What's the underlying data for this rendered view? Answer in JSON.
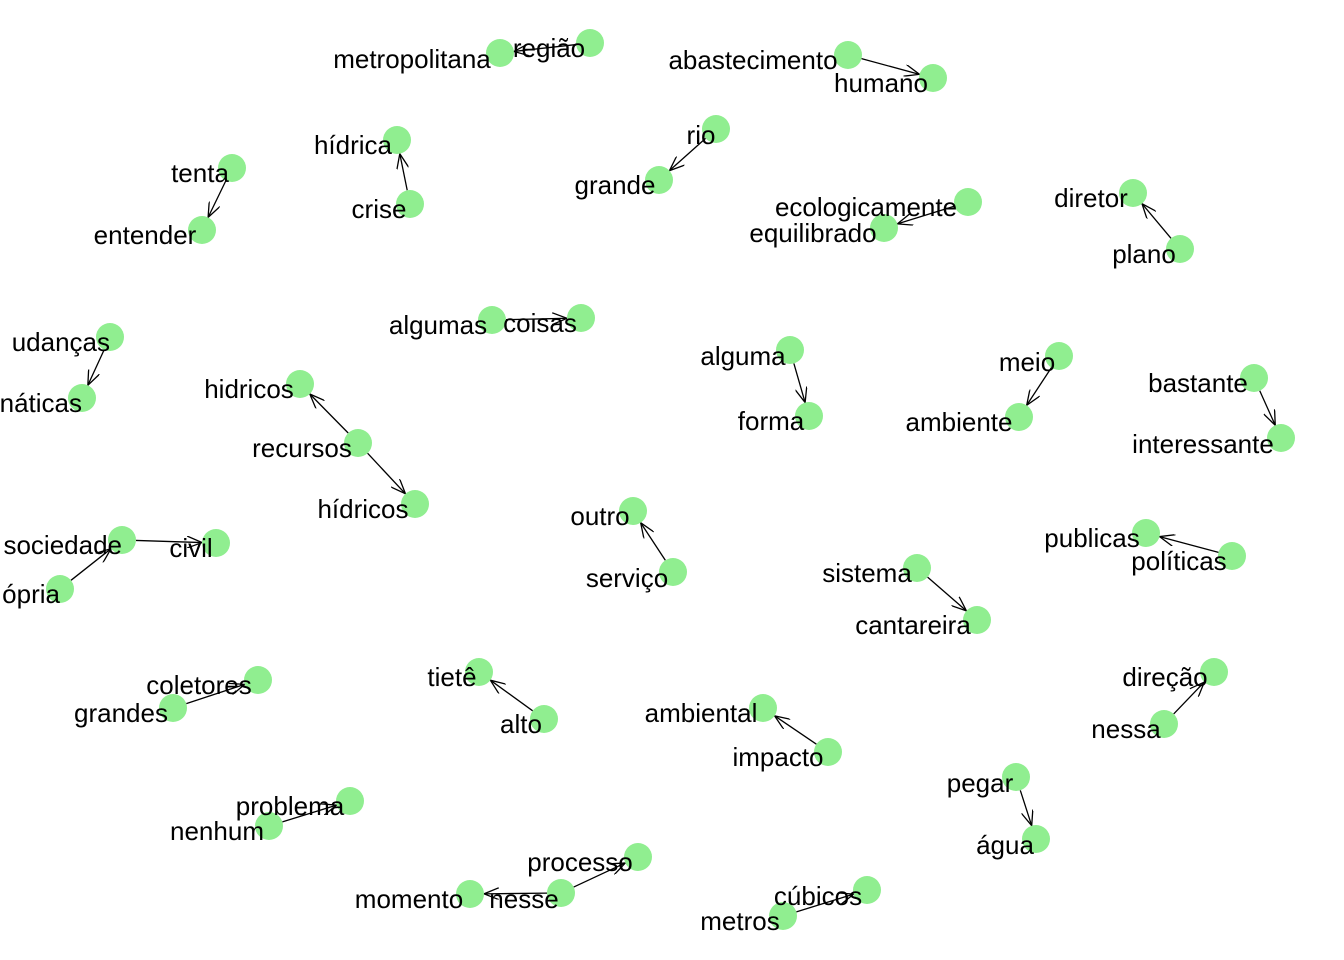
{
  "node_color": "#90ee90",
  "edge_color": "#000000",
  "nodes": [
    {
      "id": "metropolitana",
      "label": "metropolitana"
    },
    {
      "id": "regiao",
      "label": "região"
    },
    {
      "id": "abastecimento",
      "label": "abastecimento"
    },
    {
      "id": "humano",
      "label": "humano"
    },
    {
      "id": "hidrica",
      "label": "hídrica"
    },
    {
      "id": "crise",
      "label": "crise"
    },
    {
      "id": "rio",
      "label": "rio"
    },
    {
      "id": "grande",
      "label": "grande"
    },
    {
      "id": "tenta",
      "label": "tenta"
    },
    {
      "id": "entender",
      "label": "entender"
    },
    {
      "id": "ecologicamente",
      "label": "ecologicamente"
    },
    {
      "id": "equilibrado",
      "label": "equilibrado"
    },
    {
      "id": "diretor",
      "label": "diretor"
    },
    {
      "id": "plano",
      "label": "plano"
    },
    {
      "id": "mudancas",
      "label": "udanças"
    },
    {
      "id": "climaticas",
      "label": "náticas"
    },
    {
      "id": "algumas",
      "label": "algumas"
    },
    {
      "id": "coisas",
      "label": "coisas"
    },
    {
      "id": "alguma",
      "label": "alguma"
    },
    {
      "id": "forma",
      "label": "forma"
    },
    {
      "id": "meio",
      "label": "meio"
    },
    {
      "id": "ambiente",
      "label": "ambiente"
    },
    {
      "id": "bastante",
      "label": "bastante"
    },
    {
      "id": "interessante",
      "label": "interessante"
    },
    {
      "id": "hidricos1",
      "label": "hidricos"
    },
    {
      "id": "recursos",
      "label": "recursos"
    },
    {
      "id": "hidricos2",
      "label": "hídricos"
    },
    {
      "id": "sociedade",
      "label": "sociedade"
    },
    {
      "id": "civil",
      "label": "civil"
    },
    {
      "id": "propria",
      "label": "ópria"
    },
    {
      "id": "outro",
      "label": "outro"
    },
    {
      "id": "servico",
      "label": "serviço"
    },
    {
      "id": "publicas",
      "label": "publicas"
    },
    {
      "id": "politicas",
      "label": "políticas"
    },
    {
      "id": "sistema",
      "label": "sistema"
    },
    {
      "id": "cantareira",
      "label": "cantareira"
    },
    {
      "id": "coletores",
      "label": "coletores"
    },
    {
      "id": "grandes",
      "label": "grandes"
    },
    {
      "id": "tiete",
      "label": "tietê"
    },
    {
      "id": "alto",
      "label": "alto"
    },
    {
      "id": "ambiental",
      "label": "ambiental"
    },
    {
      "id": "impacto",
      "label": "impacto"
    },
    {
      "id": "direcao",
      "label": "direção"
    },
    {
      "id": "nessa",
      "label": "nessa"
    },
    {
      "id": "pegar",
      "label": "pegar"
    },
    {
      "id": "agua",
      "label": "água"
    },
    {
      "id": "problema",
      "label": "problema"
    },
    {
      "id": "nenhum",
      "label": "nenhum"
    },
    {
      "id": "processo",
      "label": "processo"
    },
    {
      "id": "nesse",
      "label": "nesse"
    },
    {
      "id": "momento",
      "label": "momento"
    },
    {
      "id": "cubicos",
      "label": "cúbicos"
    },
    {
      "id": "metros",
      "label": "metros"
    }
  ],
  "edges": [
    {
      "from": "regiao",
      "to": "metropolitana"
    },
    {
      "from": "abastecimento",
      "to": "humano"
    },
    {
      "from": "crise",
      "to": "hidrica"
    },
    {
      "from": "rio",
      "to": "grande"
    },
    {
      "from": "tenta",
      "to": "entender"
    },
    {
      "from": "ecologicamente",
      "to": "equilibrado"
    },
    {
      "from": "plano",
      "to": "diretor"
    },
    {
      "from": "mudancas",
      "to": "climaticas"
    },
    {
      "from": "algumas",
      "to": "coisas"
    },
    {
      "from": "alguma",
      "to": "forma"
    },
    {
      "from": "meio",
      "to": "ambiente"
    },
    {
      "from": "bastante",
      "to": "interessante"
    },
    {
      "from": "recursos",
      "to": "hidricos1"
    },
    {
      "from": "recursos",
      "to": "hidricos2"
    },
    {
      "from": "sociedade",
      "to": "civil"
    },
    {
      "from": "propria",
      "to": "sociedade"
    },
    {
      "from": "servico",
      "to": "outro"
    },
    {
      "from": "politicas",
      "to": "publicas"
    },
    {
      "from": "sistema",
      "to": "cantareira"
    },
    {
      "from": "grandes",
      "to": "coletores"
    },
    {
      "from": "alto",
      "to": "tiete"
    },
    {
      "from": "impacto",
      "to": "ambiental"
    },
    {
      "from": "nessa",
      "to": "direcao"
    },
    {
      "from": "pegar",
      "to": "agua"
    },
    {
      "from": "nenhum",
      "to": "problema"
    },
    {
      "from": "nesse",
      "to": "processo"
    },
    {
      "from": "nesse",
      "to": "momento"
    },
    {
      "from": "metros",
      "to": "cubicos"
    }
  ]
}
